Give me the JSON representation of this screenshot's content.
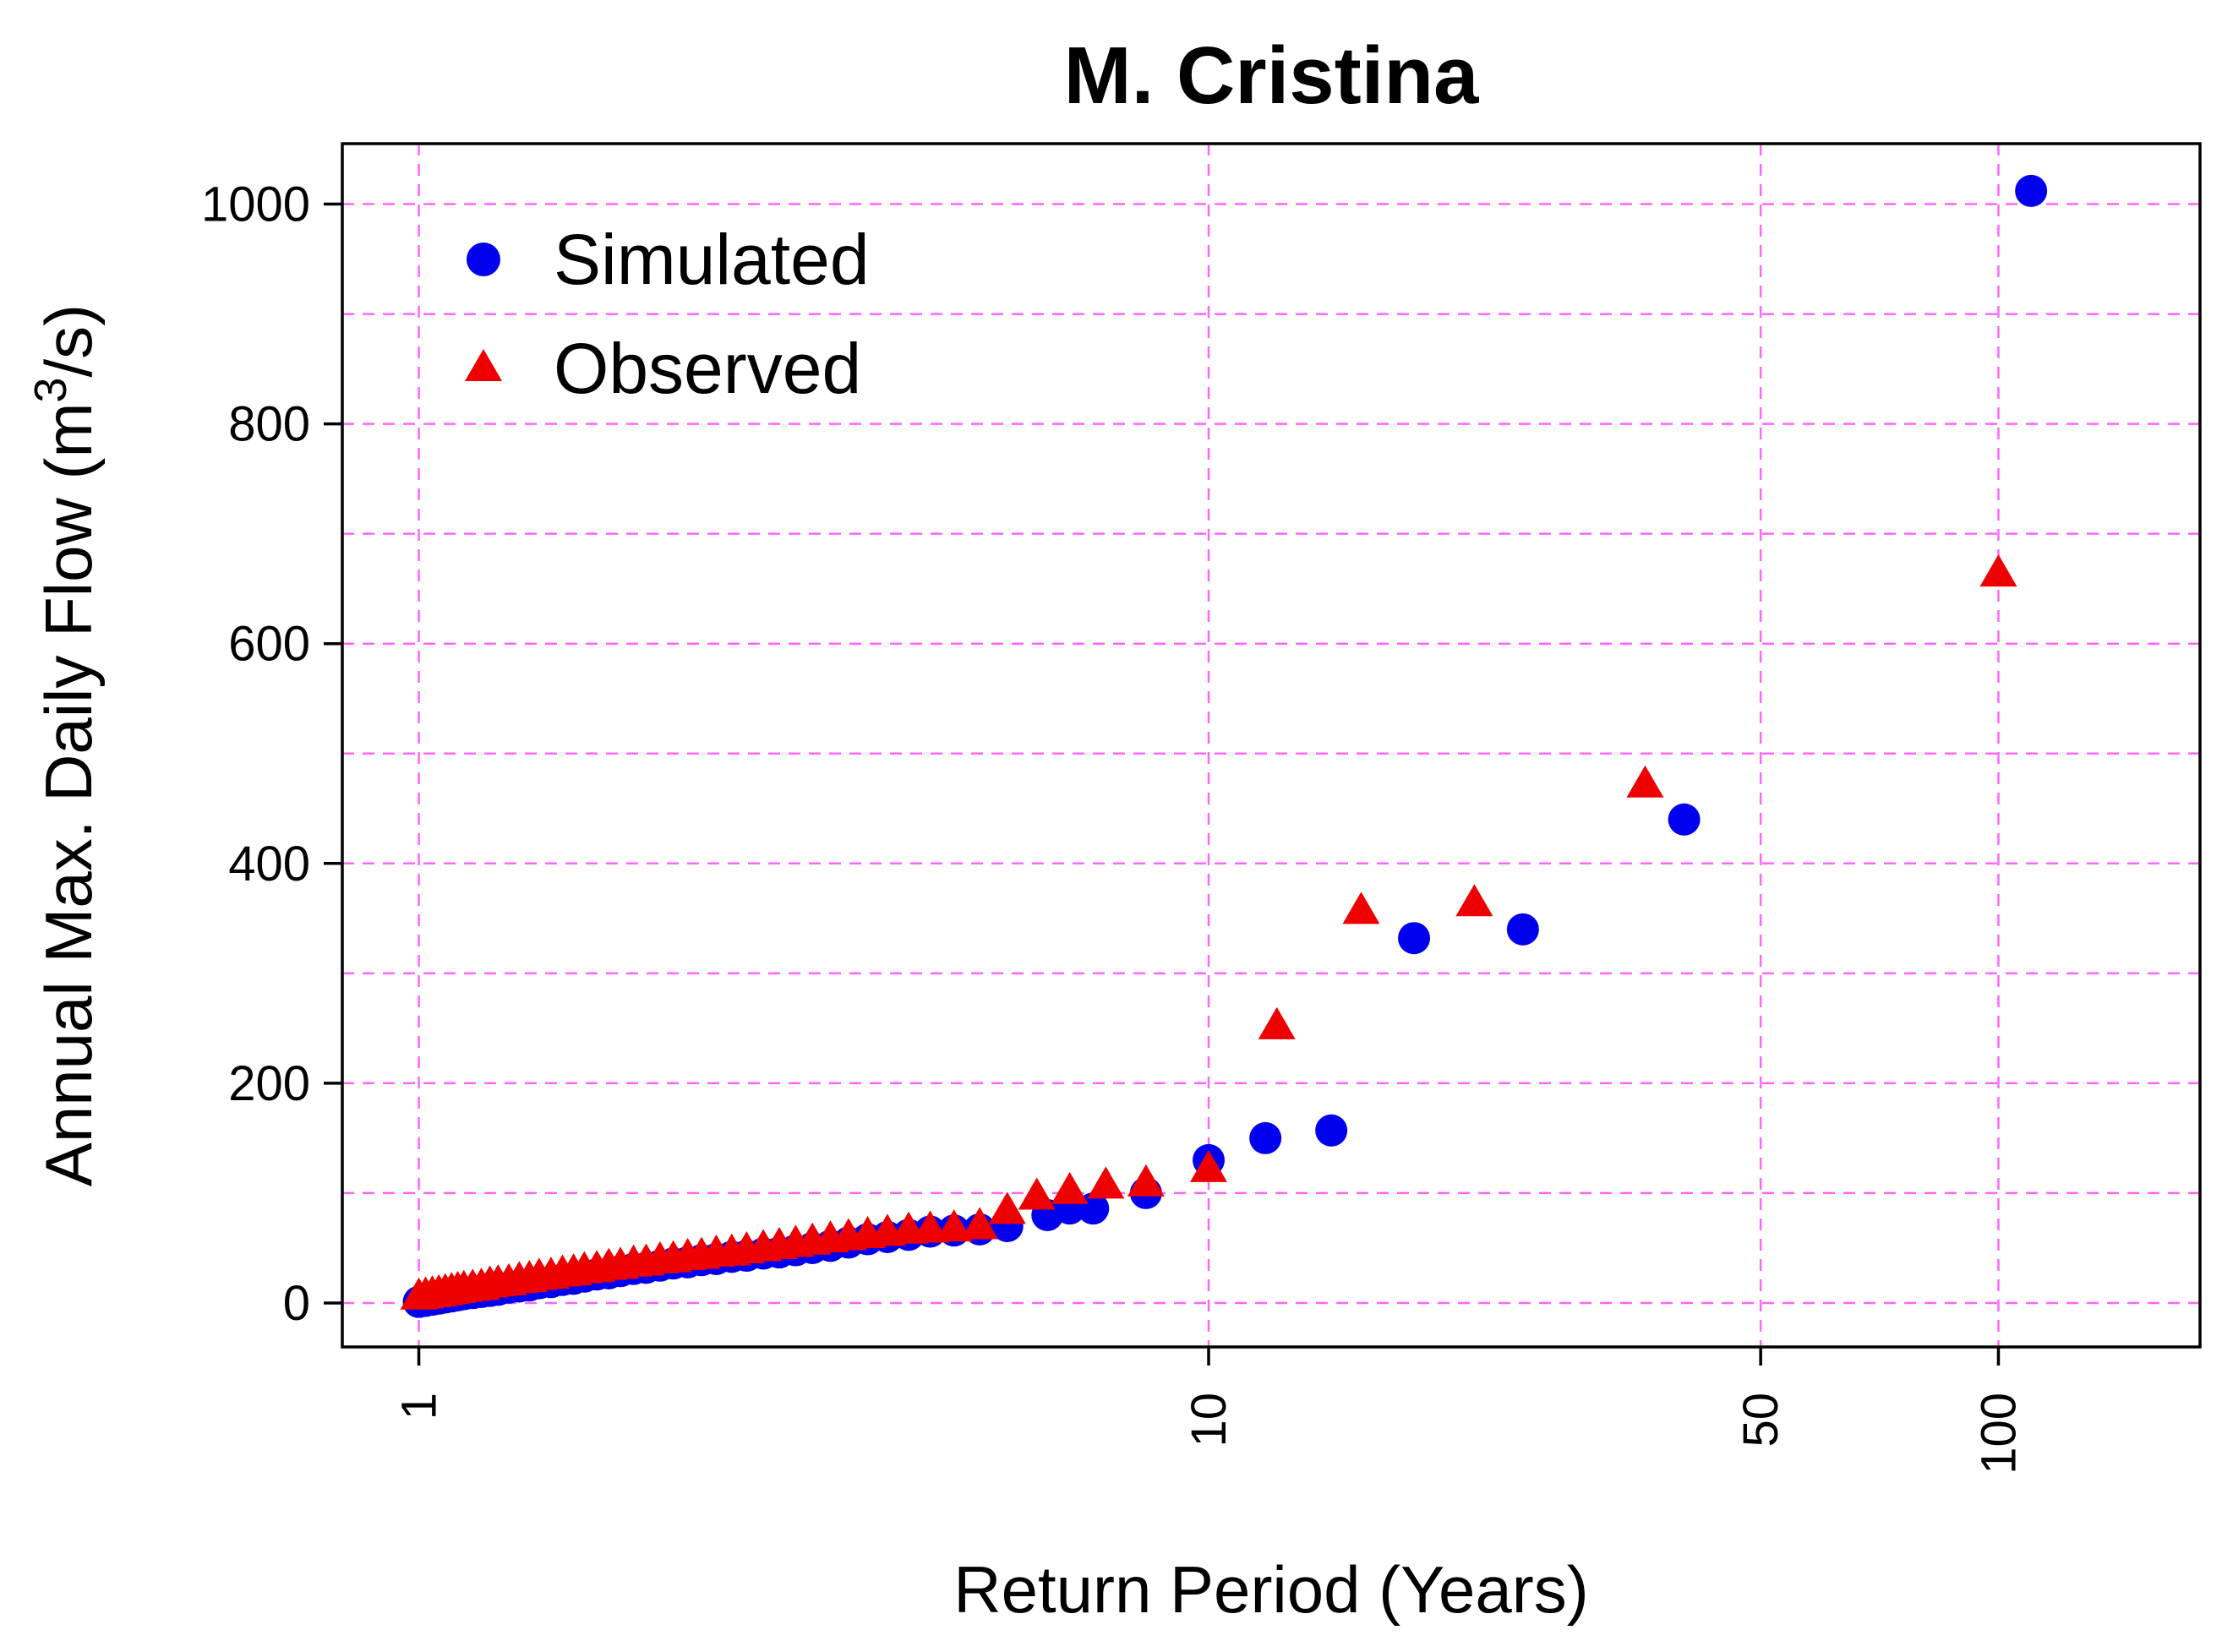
{
  "chart_data": {
    "type": "scatter",
    "title": "M. Cristina",
    "xlabel": "Return Period (Years)",
    "ylabel_main": "Annual Max. Daily Flow (m",
    "ylabel_superscript": "3",
    "ylabel_tail": "/s)",
    "x_scale": "log",
    "xlim": [
      0.8,
      180
    ],
    "ylim": [
      -40,
      1055
    ],
    "x_ticks": [
      1,
      10,
      50,
      100
    ],
    "x_tick_labels": [
      "1",
      "10",
      "50",
      "100"
    ],
    "y_ticks": [
      0,
      200,
      400,
      600,
      800,
      1000
    ],
    "y_tick_labels": [
      "0",
      "200",
      "400",
      "600",
      "800",
      "1000"
    ],
    "x_grid": [
      1,
      10,
      50,
      100
    ],
    "y_grid": [
      0,
      100,
      200,
      300,
      400,
      500,
      600,
      700,
      800,
      900,
      1000
    ],
    "grid": true,
    "legend_position": "top-left",
    "series": [
      {
        "name": "Simulated",
        "marker": "circle",
        "color": "#0000ee",
        "points": [
          [
            1.0,
            1
          ],
          [
            1.02,
            2
          ],
          [
            1.04,
            3
          ],
          [
            1.06,
            4
          ],
          [
            1.08,
            5
          ],
          [
            1.1,
            6
          ],
          [
            1.12,
            7
          ],
          [
            1.14,
            8
          ],
          [
            1.17,
            9
          ],
          [
            1.2,
            10
          ],
          [
            1.23,
            11
          ],
          [
            1.26,
            12
          ],
          [
            1.3,
            14
          ],
          [
            1.34,
            15
          ],
          [
            1.38,
            16
          ],
          [
            1.42,
            18
          ],
          [
            1.47,
            19
          ],
          [
            1.52,
            21
          ],
          [
            1.57,
            22
          ],
          [
            1.62,
            24
          ],
          [
            1.68,
            26
          ],
          [
            1.74,
            27
          ],
          [
            1.8,
            29
          ],
          [
            1.87,
            31
          ],
          [
            1.94,
            32
          ],
          [
            2.02,
            34
          ],
          [
            2.1,
            36
          ],
          [
            2.19,
            37
          ],
          [
            2.28,
            39
          ],
          [
            2.38,
            40
          ],
          [
            2.49,
            42
          ],
          [
            2.6,
            43
          ],
          [
            2.73,
            45
          ],
          [
            2.86,
            46
          ],
          [
            3.0,
            48
          ],
          [
            3.15,
            50
          ],
          [
            3.32,
            52
          ],
          [
            3.5,
            55
          ],
          [
            3.7,
            58
          ],
          [
            3.92,
            60
          ],
          [
            4.17,
            62
          ],
          [
            4.44,
            65
          ],
          [
            4.76,
            66
          ],
          [
            5.13,
            67
          ],
          [
            5.56,
            70
          ],
          [
            6.25,
            80
          ],
          [
            6.67,
            86
          ],
          [
            7.14,
            86
          ],
          [
            8.33,
            100
          ],
          [
            10.0,
            130
          ],
          [
            11.8,
            150
          ],
          [
            14.3,
            157
          ],
          [
            18.2,
            332
          ],
          [
            25.0,
            340
          ],
          [
            40.0,
            440
          ],
          [
            110.0,
            1012
          ]
        ]
      },
      {
        "name": "Observed",
        "marker": "triangle",
        "color": "#ee0000",
        "points": [
          [
            1.0,
            4
          ],
          [
            1.02,
            5
          ],
          [
            1.04,
            6
          ],
          [
            1.06,
            7
          ],
          [
            1.08,
            8
          ],
          [
            1.1,
            9
          ],
          [
            1.12,
            10
          ],
          [
            1.14,
            11
          ],
          [
            1.17,
            12
          ],
          [
            1.2,
            13
          ],
          [
            1.23,
            15
          ],
          [
            1.26,
            16
          ],
          [
            1.3,
            17
          ],
          [
            1.34,
            19
          ],
          [
            1.38,
            20
          ],
          [
            1.42,
            22
          ],
          [
            1.47,
            23
          ],
          [
            1.52,
            25
          ],
          [
            1.57,
            26
          ],
          [
            1.62,
            28
          ],
          [
            1.68,
            29
          ],
          [
            1.74,
            31
          ],
          [
            1.8,
            32
          ],
          [
            1.87,
            34
          ],
          [
            1.94,
            35
          ],
          [
            2.02,
            37
          ],
          [
            2.1,
            38
          ],
          [
            2.19,
            40
          ],
          [
            2.28,
            41
          ],
          [
            2.38,
            43
          ],
          [
            2.49,
            44
          ],
          [
            2.6,
            46
          ],
          [
            2.73,
            48
          ],
          [
            2.86,
            50
          ],
          [
            3.0,
            52
          ],
          [
            3.15,
            54
          ],
          [
            3.32,
            56
          ],
          [
            3.5,
            58
          ],
          [
            3.7,
            60
          ],
          [
            3.92,
            62
          ],
          [
            4.17,
            64
          ],
          [
            4.44,
            65
          ],
          [
            4.76,
            66
          ],
          [
            5.13,
            68
          ],
          [
            5.56,
            82
          ],
          [
            6.06,
            95
          ],
          [
            6.67,
            100
          ],
          [
            7.41,
            105
          ],
          [
            8.33,
            107
          ],
          [
            10.0,
            120
          ],
          [
            12.2,
            250
          ],
          [
            15.6,
            355
          ],
          [
            21.7,
            362
          ],
          [
            35.7,
            470
          ],
          [
            100.0,
            662
          ]
        ]
      }
    ]
  }
}
